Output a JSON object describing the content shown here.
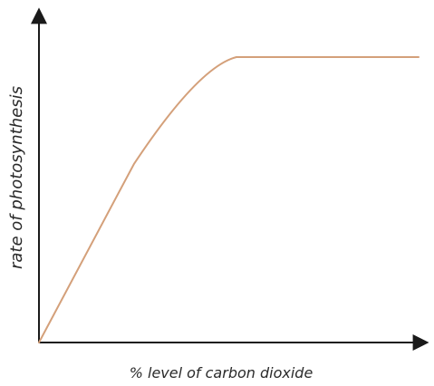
{
  "chart_data": {
    "type": "line",
    "title": "",
    "xlabel": "% level of carbon dioxide",
    "ylabel": "rate of photosynthesis",
    "grid": false,
    "legend": "none",
    "xlim": [
      0,
      100
    ],
    "ylim": [
      0,
      100
    ],
    "series": [
      {
        "x": [
          0,
          25,
          42,
          52,
          100
        ],
        "y": [
          0,
          55,
          85,
          88,
          88
        ]
      }
    ],
    "colors": {
      "curve": "#d4a07a",
      "axis": "#1a1a1a",
      "label": "#2a2a2a"
    }
  }
}
